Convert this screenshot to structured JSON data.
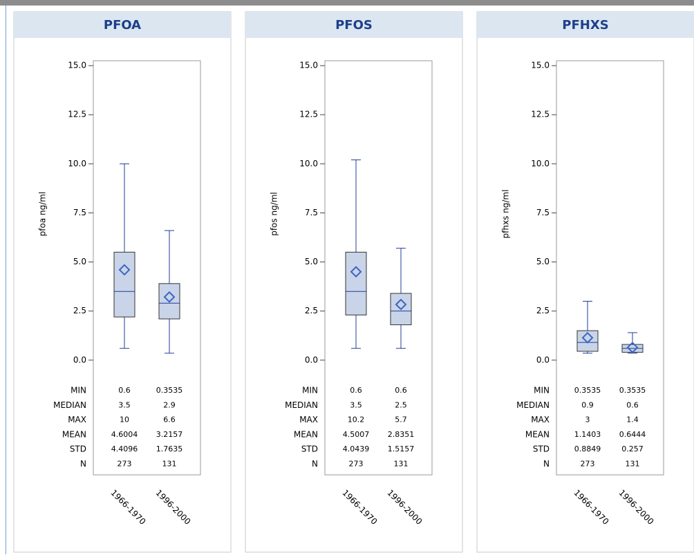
{
  "chart_data": [
    {
      "type": "box",
      "title": "PFOA",
      "ylabel": "pfoa ng/ml",
      "categories": [
        "1966-1970",
        "1996-2000"
      ],
      "ylim": [
        -0.5,
        15.25
      ],
      "yticks": [
        {
          "value": 0,
          "label": "0.0"
        },
        {
          "value": 2.5,
          "label": "2.5"
        },
        {
          "value": 5,
          "label": "5.0"
        },
        {
          "value": 7.5,
          "label": "7.5"
        },
        {
          "value": 10,
          "label": "10.0"
        },
        {
          "value": 12.5,
          "label": "12.5"
        },
        {
          "value": 15,
          "label": "15.0"
        }
      ],
      "color": "#1f3c9b",
      "fill": "#c9d4e8",
      "mean_color": "#3a66c4",
      "stat_labels": [
        "MIN",
        "MEDIAN",
        "MAX",
        "MEAN",
        "STD",
        "N"
      ],
      "boxes": [
        {
          "min": 0.6,
          "q1": 2.2,
          "median": 3.5,
          "q3": 5.5,
          "max": 10,
          "mean": 4.6004,
          "std": 4.4096,
          "n": 273
        },
        {
          "min": 0.3535,
          "q1": 2.1,
          "median": 2.9,
          "q3": 3.9,
          "max": 6.6,
          "mean": 3.2157,
          "std": 1.7635,
          "n": 131
        }
      ]
    },
    {
      "type": "box",
      "title": "PFOS",
      "ylabel": "pfos ng/ml",
      "categories": [
        "1966-1970",
        "1996-2000"
      ],
      "ylim": [
        -0.5,
        15.25
      ],
      "yticks": [
        {
          "value": 0,
          "label": "0.0"
        },
        {
          "value": 2.5,
          "label": "2.5"
        },
        {
          "value": 5,
          "label": "5.0"
        },
        {
          "value": 7.5,
          "label": "7.5"
        },
        {
          "value": 10,
          "label": "10.0"
        },
        {
          "value": 12.5,
          "label": "12.5"
        },
        {
          "value": 15,
          "label": "15.0"
        }
      ],
      "color": "#1f3c9b",
      "fill": "#c9d4e8",
      "mean_color": "#3a66c4",
      "stat_labels": [
        "MIN",
        "MEDIAN",
        "MAX",
        "MEAN",
        "STD",
        "N"
      ],
      "boxes": [
        {
          "min": 0.6,
          "q1": 2.3,
          "median": 3.5,
          "q3": 5.5,
          "max": 10.2,
          "mean": 4.5007,
          "std": 4.0439,
          "n": 273
        },
        {
          "min": 0.6,
          "q1": 1.8,
          "median": 2.5,
          "q3": 3.4,
          "max": 5.7,
          "mean": 2.8351,
          "std": 1.5157,
          "n": 131
        }
      ]
    },
    {
      "type": "box",
      "title": "PFHXS",
      "ylabel": "pfhxs ng/ml",
      "categories": [
        "1966-1970",
        "1996-2000"
      ],
      "ylim": [
        -0.5,
        15.25
      ],
      "yticks": [
        {
          "value": 0,
          "label": "0.0"
        },
        {
          "value": 2.5,
          "label": "2.5"
        },
        {
          "value": 5,
          "label": "5.0"
        },
        {
          "value": 7.5,
          "label": "7.5"
        },
        {
          "value": 10,
          "label": "10.0"
        },
        {
          "value": 12.5,
          "label": "12.5"
        },
        {
          "value": 15,
          "label": "15.0"
        }
      ],
      "color": "#1f3c9b",
      "fill": "#c9d4e8",
      "mean_color": "#3a66c4",
      "stat_labels": [
        "MIN",
        "MEDIAN",
        "MAX",
        "MEAN",
        "STD",
        "N"
      ],
      "boxes": [
        {
          "min": 0.3535,
          "q1": 0.45,
          "median": 0.9,
          "q3": 1.5,
          "max": 3,
          "mean": 1.1403,
          "std": 0.8849,
          "n": 273
        },
        {
          "min": 0.3535,
          "q1": 0.4,
          "median": 0.6,
          "q3": 0.8,
          "max": 1.4,
          "mean": 0.6444,
          "std": 0.257,
          "n": 131
        }
      ]
    }
  ]
}
